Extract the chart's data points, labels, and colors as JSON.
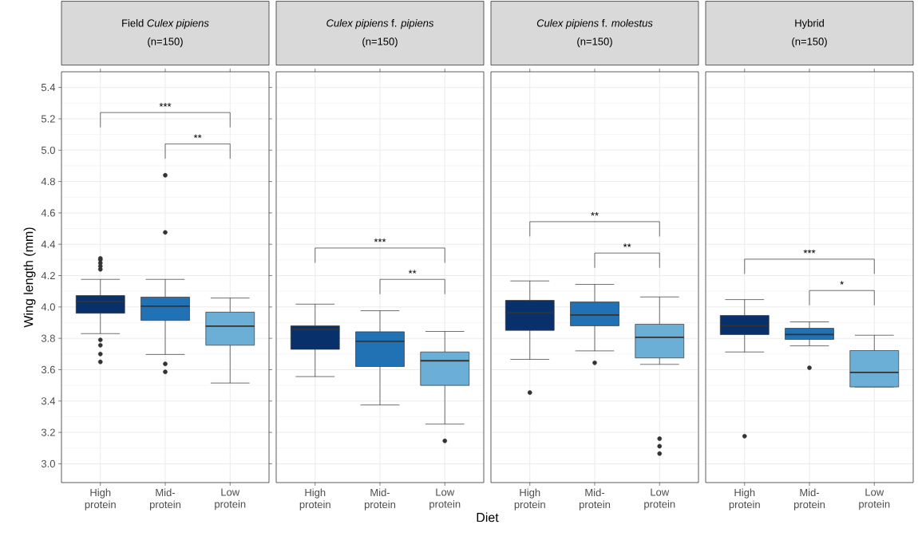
{
  "chart_data": [
    {
      "type": "box",
      "title": "Field *Culex pipiens*",
      "subtitle": "(n=150)",
      "ylabel": "Wing length (mm)",
      "categories": [
        "High protein",
        "Mid-protein",
        "Low protein"
      ],
      "colors": [
        "#08306b",
        "#2171b5",
        "#6baed6"
      ],
      "boxes": [
        {
          "low": 3.83,
          "q1": 3.96,
          "median": 4.035,
          "q3": 4.073,
          "high": 4.176,
          "outliers": [
            4.24,
            4.26,
            4.28,
            4.3,
            4.31,
            3.79,
            3.756,
            3.7,
            3.65
          ]
        },
        {
          "low": 3.697,
          "q1": 3.914,
          "median": 4.005,
          "q3": 4.063,
          "high": 4.176,
          "outliers": [
            4.84,
            4.476,
            3.637,
            3.586
          ]
        },
        {
          "low": 3.515,
          "q1": 3.756,
          "median": 3.878,
          "q3": 3.967,
          "high": 4.057
        }
      ],
      "annotations": [
        "***",
        "**"
      ],
      "ylim": [
        2.88,
        5.5
      ],
      "yticks": [
        {
          "value": 3.0,
          "label": "3.0"
        },
        {
          "value": 3.2,
          "label": "3.2"
        },
        {
          "value": 3.4,
          "label": "3.4"
        },
        {
          "value": 3.6,
          "label": "3.6"
        },
        {
          "value": 3.8,
          "label": "3.8"
        },
        {
          "value": 4.0,
          "label": "4.0"
        },
        {
          "value": 4.2,
          "label": "4.2"
        },
        {
          "value": 4.4,
          "label": "4.4"
        },
        {
          "value": 4.6,
          "label": "4.6"
        },
        {
          "value": 4.8,
          "label": "4.8"
        },
        {
          "value": 5.0,
          "label": "5.0"
        },
        {
          "value": 5.2,
          "label": "5.2"
        },
        {
          "value": 5.4,
          "label": "5.4"
        }
      ],
      "grid": true
    },
    {
      "type": "box",
      "title": "*Culex pipiens* f. *pipiens*",
      "subtitle": "(n=150)",
      "xlabel": "Diet",
      "categories": [
        "High protein",
        "Mid-protein",
        "Low protein"
      ],
      "colors": [
        "#08306b",
        "#2171b5",
        "#6baed6"
      ],
      "boxes": [
        {
          "low": 3.556,
          "q1": 3.73,
          "median": 3.856,
          "q3": 3.88,
          "high": 4.018
        },
        {
          "low": 3.375,
          "q1": 3.62,
          "median": 3.781,
          "q3": 3.842,
          "high": 3.976
        },
        {
          "low": 3.253,
          "q1": 3.5,
          "median": 3.657,
          "q3": 3.713,
          "high": 3.844,
          "outliers": [
            3.146
          ]
        }
      ],
      "annotations": [
        "***",
        "**"
      ],
      "ylim": [
        2.88,
        5.5
      ],
      "yticks": [
        3.0,
        3.2,
        3.4,
        3.6,
        3.8,
        4.0,
        4.2,
        4.4,
        4.6,
        4.8,
        5.0,
        5.2,
        5.4
      ],
      "tick_labels": "x",
      "grid": true
    },
    {
      "type": "box",
      "title": "*Culex pipiens* f. *molestus*",
      "subtitle": "(n=150)",
      "categories": [
        "High protein",
        "Mid-protein",
        "Low protein"
      ],
      "colors": [
        "#08306b",
        "#2171b5",
        "#6baed6"
      ],
      "boxes": [
        {
          "low": 3.666,
          "q1": 3.851,
          "median": 3.964,
          "q3": 4.042,
          "high": 4.166,
          "outliers": [
            3.454
          ]
        },
        {
          "low": 3.72,
          "q1": 3.88,
          "median": 3.949,
          "q3": 4.032,
          "high": 4.144,
          "outliers": [
            3.644
          ]
        },
        {
          "low": 3.634,
          "q1": 3.675,
          "median": 3.807,
          "q3": 3.89,
          "high": 4.064,
          "outliers": [
            3.16,
            3.112,
            3.065
          ]
        }
      ],
      "annotations": [
        "**",
        "**"
      ],
      "ylim": [
        2.88,
        5.5
      ],
      "yticks": [
        3.0,
        3.2,
        3.4,
        3.6,
        3.8,
        4.0,
        4.2,
        4.4,
        4.6,
        4.8,
        5.0,
        5.2,
        5.4
      ],
      "tick_labels": "x",
      "grid": true
    },
    {
      "type": "box",
      "title": "Hybrid",
      "subtitle": "(n=150)",
      "categories": [
        "High protein",
        "Mid-protein",
        "Low protein"
      ],
      "colors": [
        "#08306b",
        "#2171b5",
        "#6baed6"
      ],
      "boxes": [
        {
          "low": 3.713,
          "q1": 3.824,
          "median": 3.88,
          "q3": 3.946,
          "high": 4.047,
          "outliers": [
            3.176
          ]
        },
        {
          "low": 3.752,
          "q1": 3.793,
          "median": 3.824,
          "q3": 3.864,
          "high": 3.905,
          "outliers": [
            3.612
          ]
        },
        {
          "low": 3.49,
          "q1": 3.49,
          "median": 3.583,
          "q3": 3.722,
          "high": 3.82
        }
      ],
      "annotations": [
        "***",
        "*"
      ],
      "ylim": [
        2.88,
        5.5
      ],
      "yticks": [
        3.0,
        3.2,
        3.4,
        3.6,
        3.8,
        4.0,
        4.2,
        4.4,
        4.6,
        4.8,
        5.0,
        5.2,
        5.4
      ],
      "tick_labels": "x",
      "grid": true
    }
  ]
}
